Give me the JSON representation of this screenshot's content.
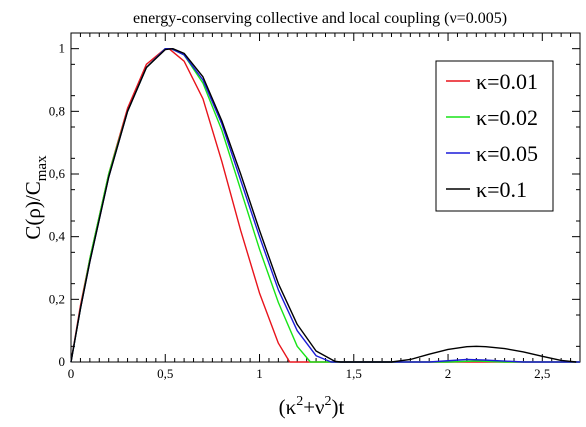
{
  "chart_data": {
    "type": "line",
    "title": "energy-conserving collective and local coupling (ν=0.005)",
    "xlabel": "(κ²+ν²)t",
    "ylabel": "C(ρ)/C_max",
    "xlabel_parts": [
      "(κ",
      "2",
      "+ν",
      "2",
      ")t"
    ],
    "ylabel_parts": [
      "C(ρ)/C",
      "max"
    ],
    "xlim": [
      0,
      2.7
    ],
    "ylim": [
      0,
      1.05
    ],
    "xticks": [
      {
        "v": 0,
        "label": "0"
      },
      {
        "v": 0.5,
        "label": "0,5"
      },
      {
        "v": 1,
        "label": "1"
      },
      {
        "v": 1.5,
        "label": "1,5"
      },
      {
        "v": 2,
        "label": "2"
      },
      {
        "v": 2.5,
        "label": "2,5"
      }
    ],
    "yticks": [
      {
        "v": 0,
        "label": "0"
      },
      {
        "v": 0.2,
        "label": "0,2"
      },
      {
        "v": 0.4,
        "label": "0,4"
      },
      {
        "v": 0.6,
        "label": "0,6"
      },
      {
        "v": 0.8,
        "label": "0,8"
      },
      {
        "v": 1,
        "label": "1"
      }
    ],
    "legend": "top-right",
    "grid": false,
    "series": [
      {
        "name": "κ=0.01",
        "color": "#e8141c",
        "x": [
          0,
          0.05,
          0.1,
          0.2,
          0.3,
          0.4,
          0.5,
          0.52,
          0.6,
          0.7,
          0.8,
          0.9,
          1.0,
          1.1,
          1.16,
          1.2,
          1.5,
          2.0,
          2.1,
          2.3,
          2.5,
          2.7
        ],
        "y": [
          0,
          0.18,
          0.33,
          0.6,
          0.81,
          0.95,
          1.0,
          1.0,
          0.96,
          0.84,
          0.64,
          0.42,
          0.22,
          0.06,
          0.0,
          0.0,
          0.0,
          0.0,
          0.0,
          0.0,
          0.0,
          0.0
        ]
      },
      {
        "name": "κ=0.02",
        "color": "#18e418",
        "x": [
          0,
          0.05,
          0.1,
          0.2,
          0.3,
          0.4,
          0.5,
          0.53,
          0.6,
          0.7,
          0.8,
          0.9,
          1.0,
          1.1,
          1.2,
          1.27,
          1.3,
          1.6,
          1.9,
          2.0,
          2.15,
          2.3,
          2.5,
          2.7
        ],
        "y": [
          0,
          0.17,
          0.33,
          0.6,
          0.8,
          0.94,
          1.0,
          1.0,
          0.98,
          0.89,
          0.74,
          0.55,
          0.36,
          0.19,
          0.05,
          0.0,
          0.0,
          0.0,
          0.0,
          0.0,
          0.003,
          0.0,
          0.0,
          0.0
        ]
      },
      {
        "name": "κ=0.05",
        "color": "#1c1cd8",
        "x": [
          0,
          0.05,
          0.1,
          0.2,
          0.3,
          0.4,
          0.5,
          0.53,
          0.6,
          0.7,
          0.8,
          0.9,
          1.0,
          1.1,
          1.2,
          1.3,
          1.38,
          1.45,
          1.7,
          1.9,
          2.1,
          2.2,
          2.4,
          2.6,
          2.7
        ],
        "y": [
          0,
          0.17,
          0.32,
          0.59,
          0.8,
          0.94,
          1.0,
          1.0,
          0.98,
          0.9,
          0.76,
          0.58,
          0.4,
          0.23,
          0.1,
          0.02,
          0.0,
          0.0,
          0.0,
          0.0,
          0.008,
          0.006,
          0.0,
          0.0,
          0.0
        ]
      },
      {
        "name": "κ=0.1",
        "color": "#000000",
        "x": [
          0,
          0.05,
          0.1,
          0.2,
          0.3,
          0.4,
          0.5,
          0.54,
          0.6,
          0.7,
          0.8,
          0.9,
          1.0,
          1.1,
          1.2,
          1.3,
          1.4,
          1.43,
          1.6,
          1.7,
          1.8,
          1.9,
          2.0,
          2.1,
          2.15,
          2.2,
          2.3,
          2.4,
          2.5,
          2.6,
          2.68
        ],
        "y": [
          0,
          0.17,
          0.32,
          0.59,
          0.8,
          0.94,
          0.997,
          1.0,
          0.985,
          0.91,
          0.77,
          0.6,
          0.42,
          0.25,
          0.12,
          0.035,
          0.002,
          0.0,
          0.0,
          0.0,
          0.008,
          0.025,
          0.04,
          0.049,
          0.05,
          0.049,
          0.043,
          0.032,
          0.018,
          0.005,
          0.0
        ]
      }
    ]
  }
}
